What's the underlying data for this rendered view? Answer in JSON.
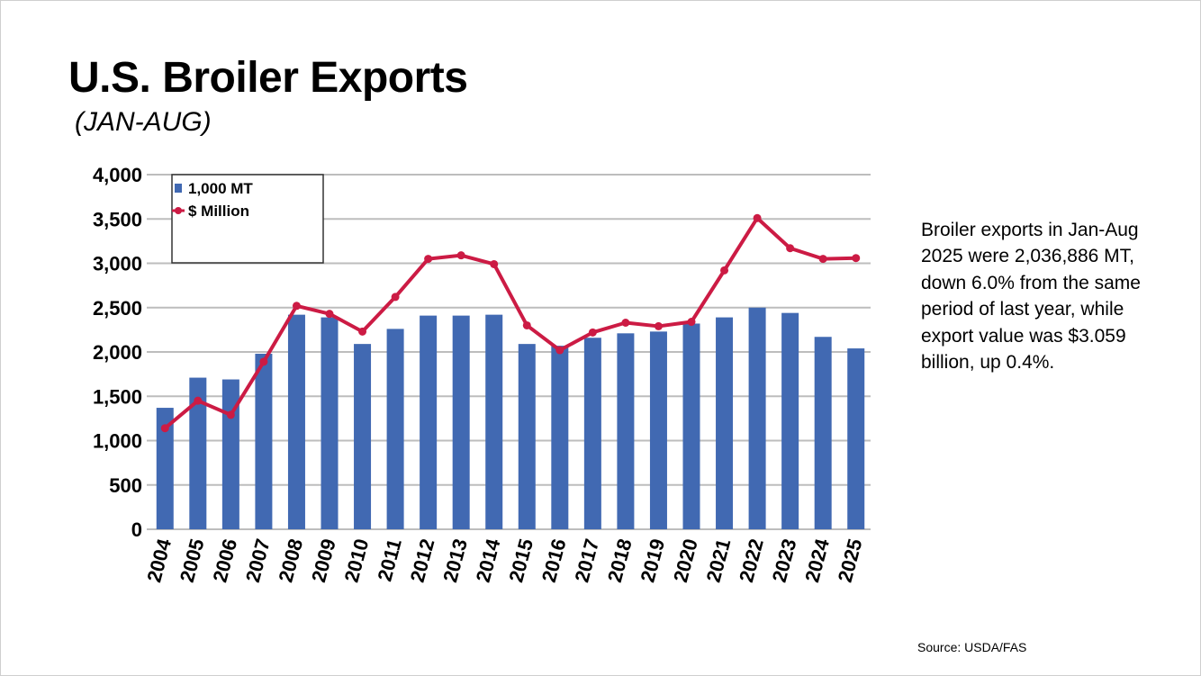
{
  "title": "U.S. Broiler Exports",
  "subtitle": "(JAN-AUG)",
  "note": "Broiler exports in Jan-Aug 2025 were 2,036,886 MT, down 6.0% from the same period of last year, while export value was $3.059 billion, up 0.4%.",
  "source": "Source: USDA/FAS",
  "colors": {
    "bar": "#4169b2",
    "line": "#cc1b44",
    "grid": "#bdbdbd"
  },
  "chart_data": {
    "type": "bar+line",
    "categories": [
      "2004",
      "2005",
      "2006",
      "2007",
      "2008",
      "2009",
      "2010",
      "2011",
      "2012",
      "2013",
      "2014",
      "2015",
      "2016",
      "2017",
      "2018",
      "2019",
      "2020",
      "2021",
      "2022",
      "2023",
      "2024",
      "2025"
    ],
    "series": [
      {
        "name": "1,000 MT",
        "kind": "bar",
        "values": [
          1370,
          1710,
          1690,
          1980,
          2420,
          2390,
          2090,
          2260,
          2410,
          2410,
          2420,
          2090,
          2070,
          2160,
          2210,
          2230,
          2320,
          2390,
          2500,
          2440,
          2170,
          2040
        ]
      },
      {
        "name": "$ Million",
        "kind": "line",
        "values": [
          1140,
          1450,
          1290,
          1890,
          2520,
          2430,
          2230,
          2620,
          3050,
          3090,
          2990,
          2300,
          2020,
          2220,
          2330,
          2290,
          2340,
          2920,
          3510,
          3170,
          3050,
          3059
        ]
      }
    ],
    "y_ticks": [
      "0",
      "500",
      "1,000",
      "1,500",
      "2,000",
      "2,500",
      "3,000",
      "3,500",
      "4,000"
    ],
    "ylim": [
      0,
      4000
    ],
    "grid": true,
    "legend_position": "top-left"
  }
}
